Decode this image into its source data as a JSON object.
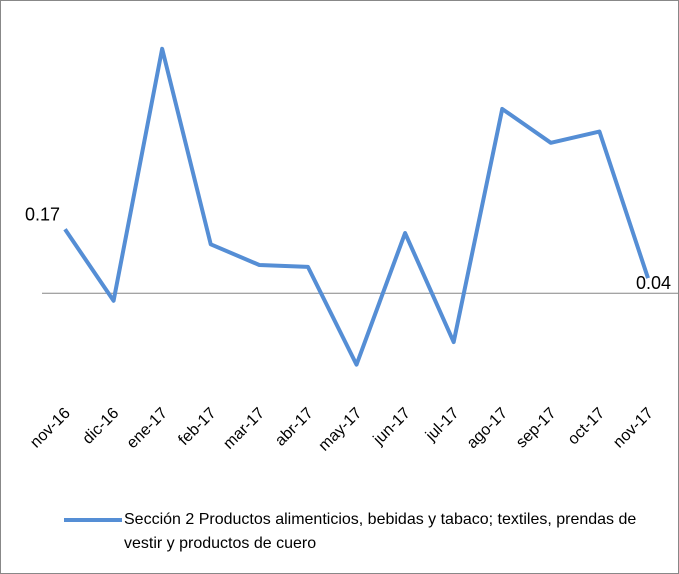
{
  "chart_data": {
    "type": "line",
    "categories": [
      "nov-16",
      "dic-16",
      "ene-17",
      "feb-17",
      "mar-17",
      "abr-17",
      "may-17",
      "jun-17",
      "jul-17",
      "ago-17",
      "sep-17",
      "oct-17",
      "nov-17"
    ],
    "series": [
      {
        "name": "Sección 2 Productos alimenticios, bebidas y tabaco; textiles, prendas de vestir y productos de cuero",
        "color": "#558ed5",
        "values": [
          0.17,
          -0.02,
          0.65,
          0.13,
          0.075,
          0.07,
          -0.19,
          0.16,
          -0.13,
          0.49,
          0.4,
          0.43,
          0.04
        ],
        "value_labels": [
          "0.17",
          null,
          null,
          null,
          null,
          null,
          null,
          null,
          null,
          null,
          null,
          null,
          "0.04"
        ]
      }
    ],
    "ylim": [
      -0.3,
      0.7
    ],
    "legend": "bottom"
  }
}
